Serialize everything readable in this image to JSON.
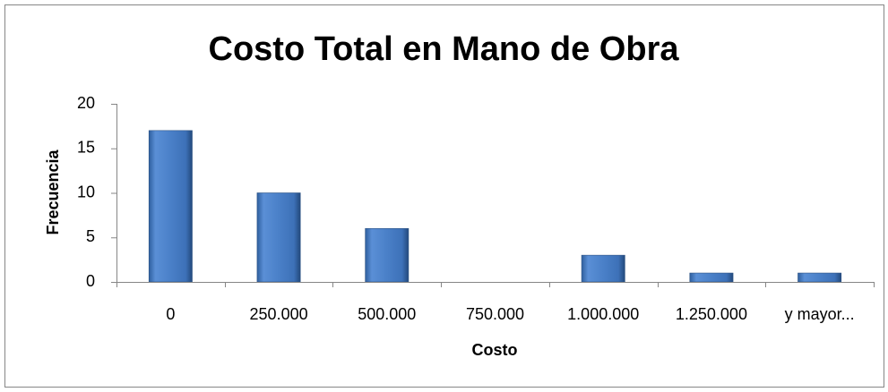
{
  "chart_data": {
    "type": "bar",
    "title": "Costo Total en Mano de Obra",
    "x_label": "Costo",
    "y_label": "Frecuencia",
    "categories": [
      "0",
      "250.000",
      "500.000",
      "750.000",
      "1.000.000",
      "1.250.000",
      "y mayor..."
    ],
    "values": [
      17,
      10,
      6,
      0,
      3,
      1,
      1
    ],
    "color": "#4f81bd",
    "ylim": [
      0,
      20
    ],
    "yticks": [
      0,
      5,
      10,
      15,
      20
    ],
    "grid": false
  }
}
